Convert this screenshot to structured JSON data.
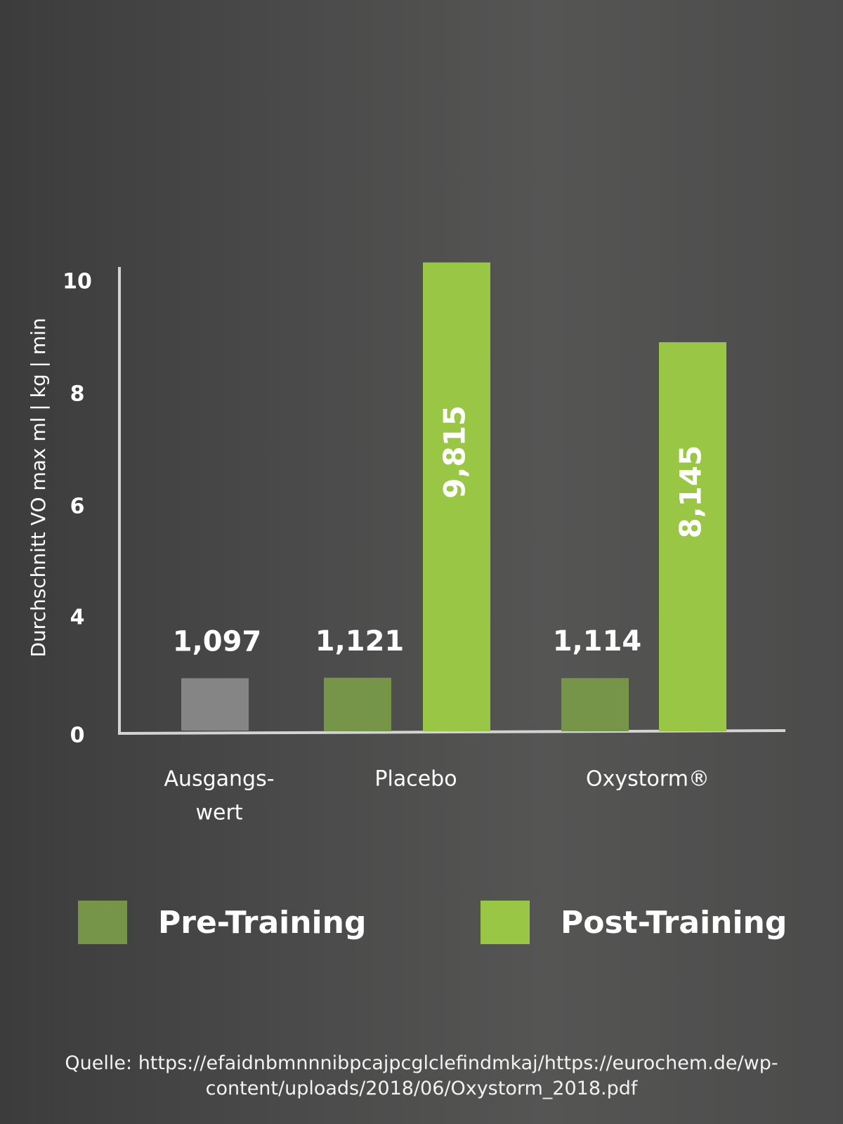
{
  "chart_data": {
    "type": "bar",
    "categories": [
      "Ausgangs-\nwert",
      "Placebo",
      "Oxystorm®"
    ],
    "series": [
      {
        "name": "Pre-Training",
        "values": [
          1.097,
          1.121,
          1.114
        ],
        "labels": [
          "1,097",
          "1,121",
          "1,114"
        ]
      },
      {
        "name": "Post-Training",
        "values": [
          null,
          9.815,
          8.145
        ],
        "labels": [
          "",
          "9,815",
          "8,145"
        ]
      }
    ],
    "ylabel": "Durchschnitt VO  max ml | kg | min",
    "ylim": [
      0,
      10
    ],
    "yticks": [
      0,
      4,
      6,
      8,
      10
    ],
    "grid": false,
    "legend_position": "bottom"
  },
  "colors": {
    "baseline_bar": "#858585",
    "pre_training": "#769548",
    "post_training": "#9ac646",
    "axis": "#d4d4d4"
  },
  "legend": [
    {
      "label": "Pre-Training",
      "color": "#769548"
    },
    {
      "label": "Post-Training",
      "color": "#9ac646"
    }
  ],
  "source": {
    "line1": "Quelle: https://efaidnbmnnnibpcajpcglclefindmkaj/https://eurochem.de/wp-",
    "line2": "content/uploads/2018/06/Oxystorm_2018.pdf"
  }
}
